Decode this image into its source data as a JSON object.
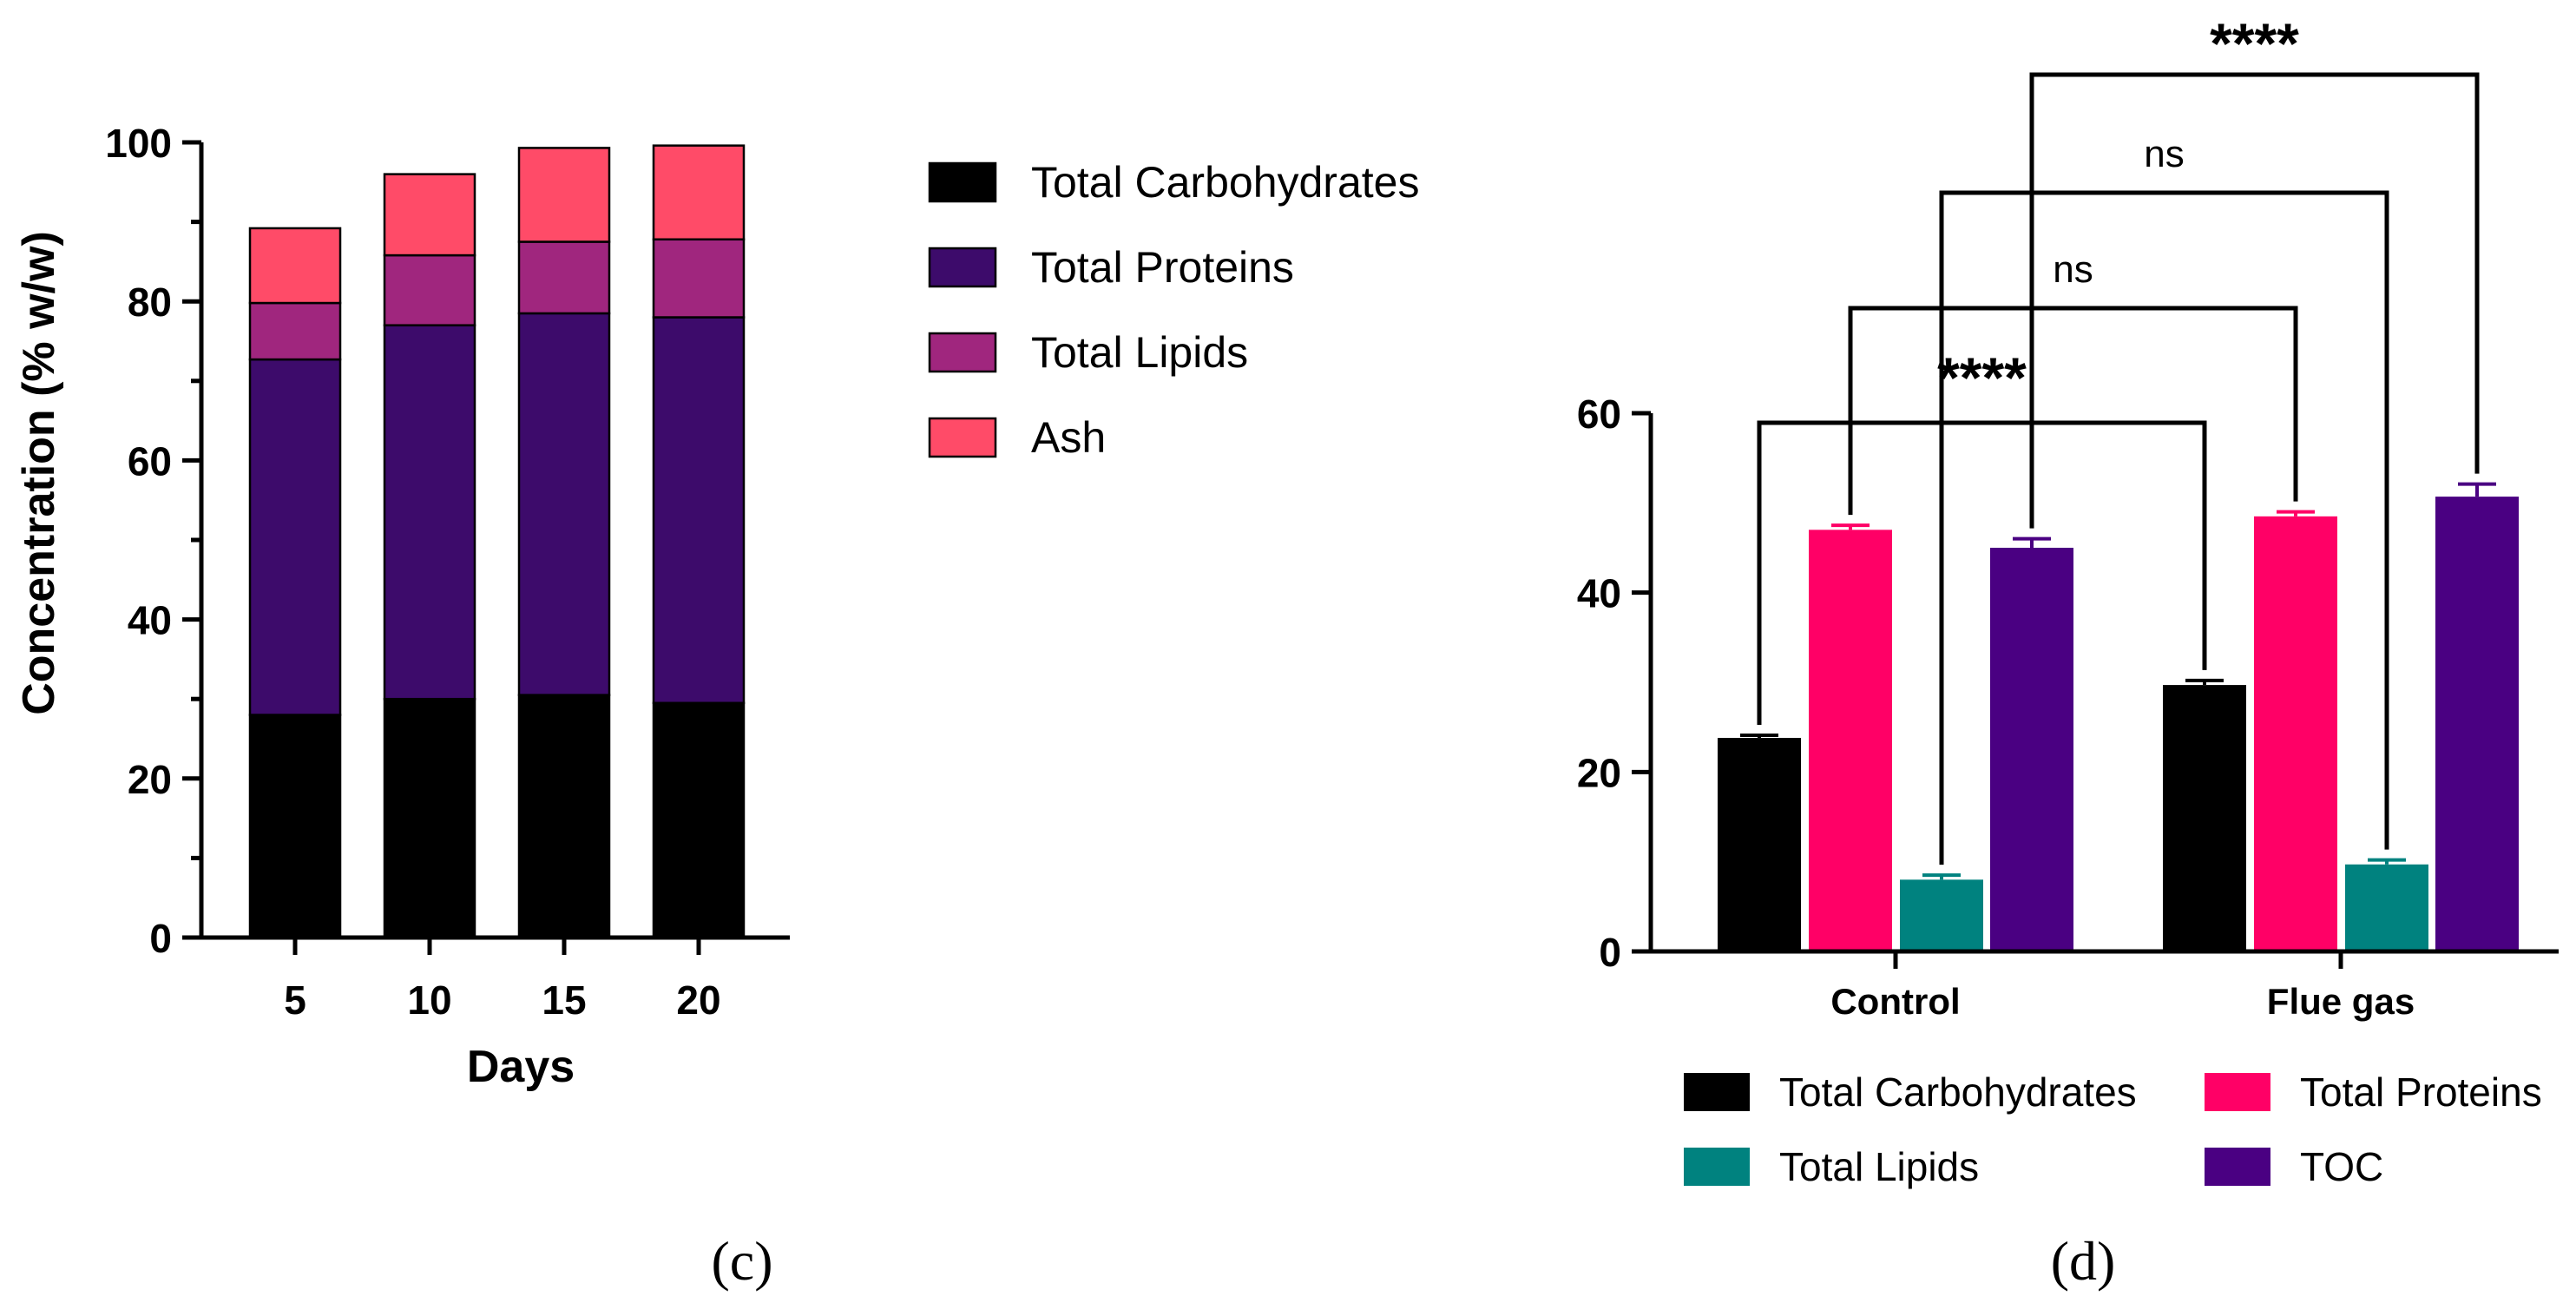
{
  "chart_data": [
    {
      "type": "bar",
      "stacked": true,
      "panel_label": "(c)",
      "title": "",
      "xlabel": "Days",
      "ylabel": "Concentration  (% w/w)",
      "ylim": [
        0,
        100
      ],
      "yticks": [
        "0",
        "20",
        "40",
        "60",
        "80",
        "100"
      ],
      "categories": [
        "5",
        "10",
        "15",
        "20"
      ],
      "series": [
        {
          "name": "Total Carbohydrates",
          "color": "#000000",
          "values": [
            28,
            30,
            30.5,
            29.5
          ]
        },
        {
          "name": "Total Proteins",
          "color": "#3d0b6b",
          "values": [
            44.7,
            47,
            48,
            48.5
          ]
        },
        {
          "name": "Total Lipids",
          "color": "#a0267e",
          "values": [
            7.1,
            8.8,
            9,
            9.8
          ]
        },
        {
          "name": "Ash",
          "color": "#ff4b68",
          "values": [
            9.4,
            10.2,
            11.8,
            11.8
          ]
        }
      ],
      "legend_position": "right"
    },
    {
      "type": "bar",
      "stacked": false,
      "panel_label": "(d)",
      "title": "",
      "xlabel": "",
      "ylabel": "",
      "ylim": [
        0,
        60
      ],
      "yticks": [
        "0",
        "20",
        "40",
        "60"
      ],
      "categories": [
        "Control",
        "Flue gas"
      ],
      "series": [
        {
          "name": "Total Carbohydrates",
          "color": "#000000",
          "values": [
            23.8,
            29.7
          ],
          "errors": [
            0.3,
            0.5
          ]
        },
        {
          "name": "Total Proteins",
          "color": "#ff0066",
          "values": [
            47,
            48.5
          ],
          "errors": [
            0.5,
            0.5
          ]
        },
        {
          "name": "Total Lipids",
          "color": "#00827f",
          "values": [
            8,
            9.7
          ],
          "errors": [
            0.5,
            0.5
          ]
        },
        {
          "name": "TOC",
          "color": "#4a0082",
          "values": [
            45,
            50.7
          ],
          "errors": [
            1,
            1.4
          ]
        }
      ],
      "significance": [
        {
          "label": "****",
          "from_series": "Total Carbohydrates",
          "between": [
            "Control",
            "Flue gas"
          ]
        },
        {
          "label": "ns",
          "from_series": "Total Proteins",
          "between": [
            "Control",
            "Flue gas"
          ]
        },
        {
          "label": "ns",
          "from_series": "Total Lipids",
          "between": [
            "Control",
            "Flue gas"
          ]
        },
        {
          "label": "****",
          "from_series": "TOC",
          "between": [
            "Control",
            "Flue gas"
          ]
        }
      ],
      "legend_position": "bottom"
    }
  ]
}
